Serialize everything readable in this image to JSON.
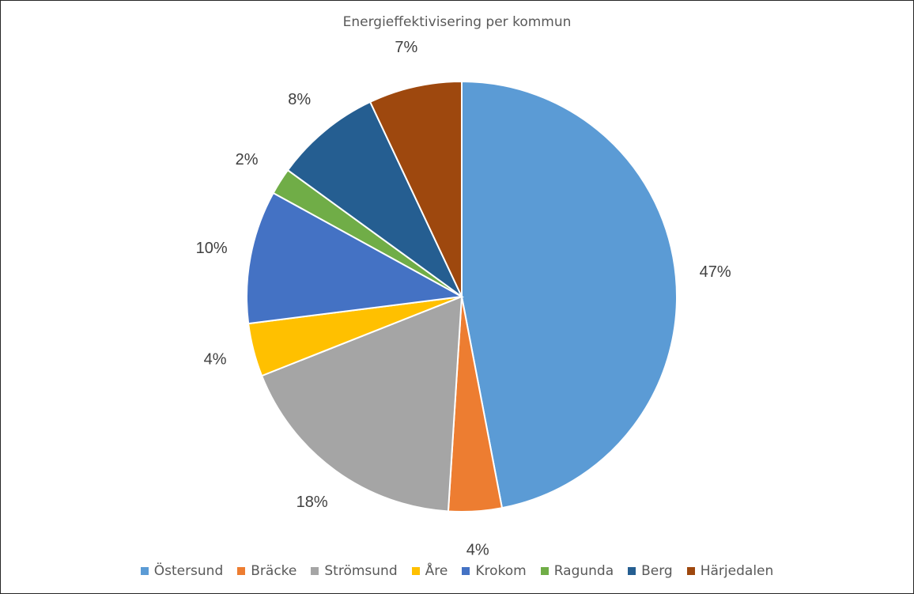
{
  "chart_data": {
    "type": "pie",
    "title": "Energieffektivisering per kommun",
    "categories": [
      "Östersund",
      "Bräcke",
      "Strömsund",
      "Åre",
      "Krokom",
      "Ragunda",
      "Berg",
      "Härjedalen"
    ],
    "values": [
      47,
      4,
      18,
      4,
      10,
      2,
      8,
      7
    ],
    "data_labels": [
      "47%",
      "4%",
      "18%",
      "4%",
      "10%",
      "2%",
      "8%",
      "7%"
    ],
    "colors": [
      "#5b9bd5",
      "#ed7d31",
      "#a5a5a5",
      "#ffc000",
      "#4472c4",
      "#70ad47",
      "#255e91",
      "#9e480e"
    ],
    "start_angle_deg": 0,
    "direction": "clockwise",
    "legend_position": "bottom",
    "label_color": "#404040"
  }
}
